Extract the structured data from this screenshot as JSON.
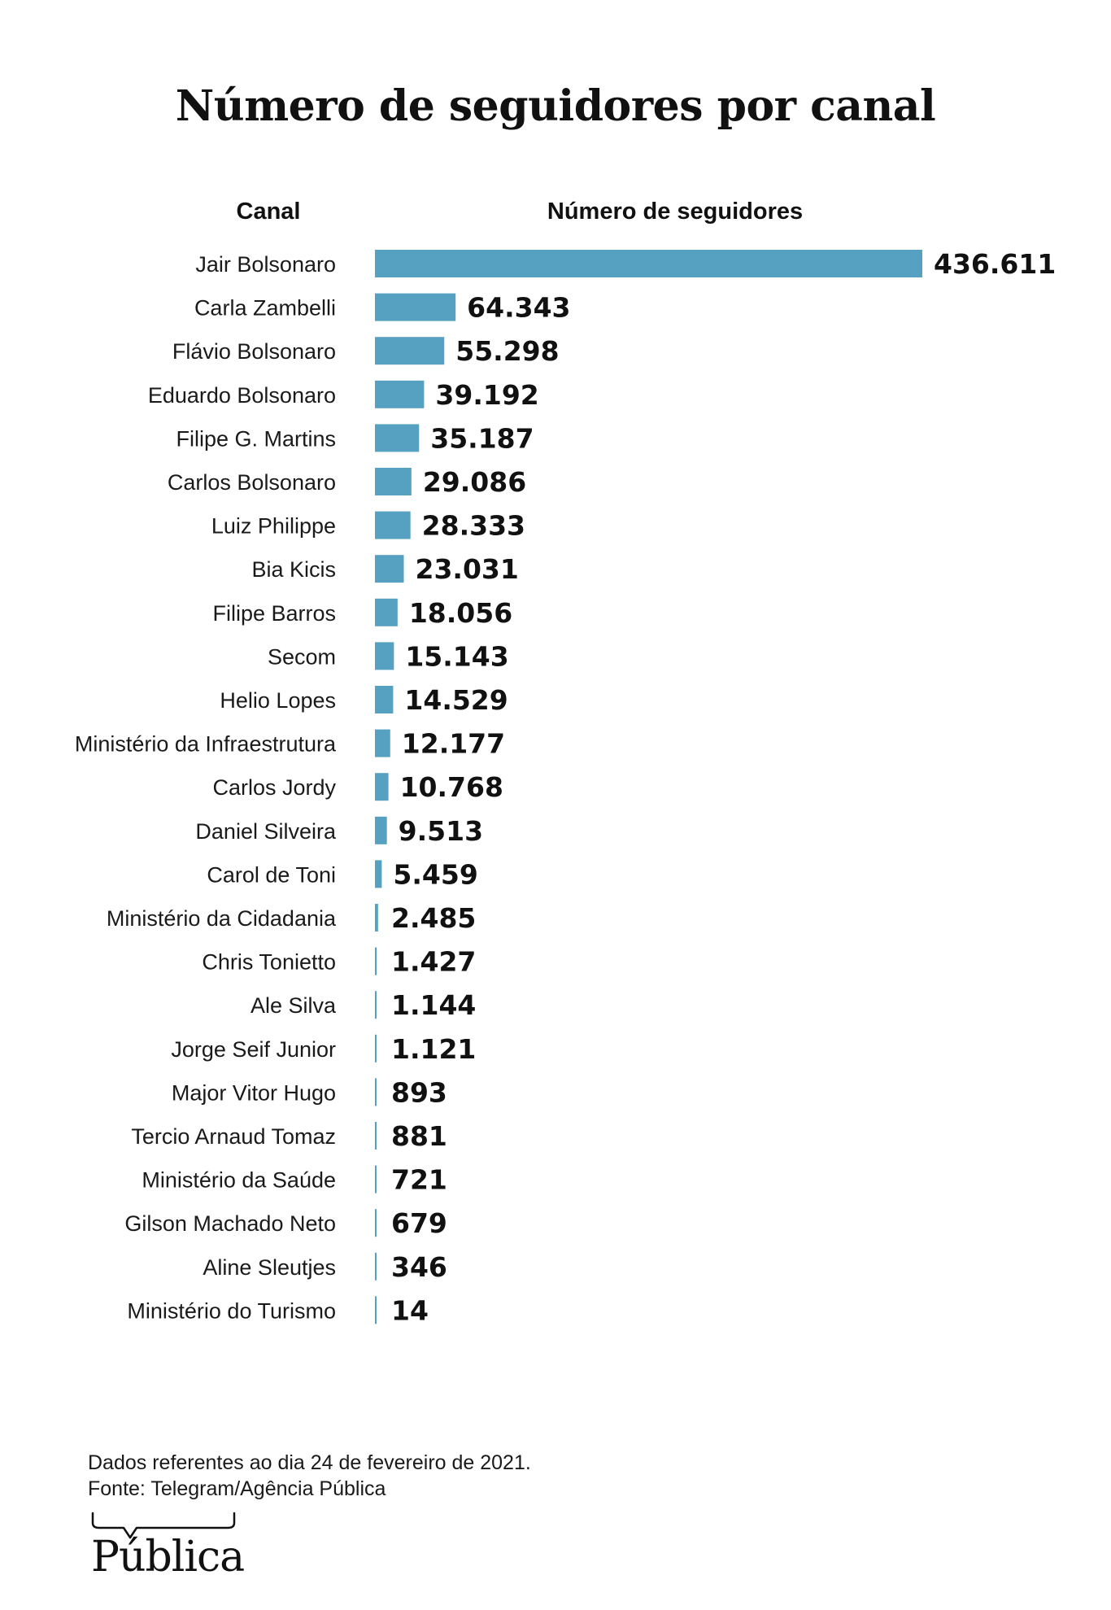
{
  "title": "Número de seguidores por canal",
  "columns": {
    "canal": "Canal",
    "numero": "Número de seguidores"
  },
  "colors": {
    "bar": "#56a0c2"
  },
  "chart_data": {
    "type": "bar",
    "orientation": "horizontal",
    "title": "Número de seguidores por canal",
    "xlabel": "Número de seguidores",
    "ylabel": "Canal",
    "categories": [
      "Jair Bolsonaro",
      "Carla Zambelli",
      "Flávio Bolsonaro",
      "Eduardo Bolsonaro",
      "Filipe G. Martins",
      "Carlos Bolsonaro",
      "Luiz Philippe",
      "Bia Kicis",
      "Filipe Barros",
      "Secom",
      "Helio Lopes",
      "Ministério da Infraestrutura",
      "Carlos Jordy",
      "Daniel Silveira",
      "Carol de Toni",
      "Ministério da Cidadania",
      "Chris Tonietto",
      "Ale Silva",
      "Jorge Seif Junior",
      "Major Vitor Hugo",
      "Tercio Arnaud Tomaz",
      "Ministério da Saúde",
      "Gilson Machado Neto",
      "Aline Sleutjes",
      "Ministério do Turismo"
    ],
    "values": [
      436611,
      64343,
      55298,
      39192,
      35187,
      29086,
      28333,
      23031,
      18056,
      15143,
      14529,
      12177,
      10768,
      9513,
      5459,
      2485,
      1427,
      1144,
      1121,
      893,
      881,
      721,
      679,
      346,
      14
    ],
    "value_labels": [
      "436.611",
      "64.343",
      "55.298",
      "39.192",
      "35.187",
      "29.086",
      "28.333",
      "23.031",
      "18.056",
      "15.143",
      "14.529",
      "12.177",
      "10.768",
      "9.513",
      "5.459",
      "2.485",
      "1.427",
      "1.144",
      "1.121",
      "893",
      "881",
      "721",
      "679",
      "346",
      "14"
    ],
    "xlim": [
      0,
      436611
    ],
    "grid": false,
    "legend": "none"
  },
  "footnote": {
    "line1": "Dados referentes ao dia 24 de fevereiro de 2021.",
    "line2": "Fonte: Telegram/Agência Pública"
  },
  "logo": {
    "text": "Pública"
  }
}
